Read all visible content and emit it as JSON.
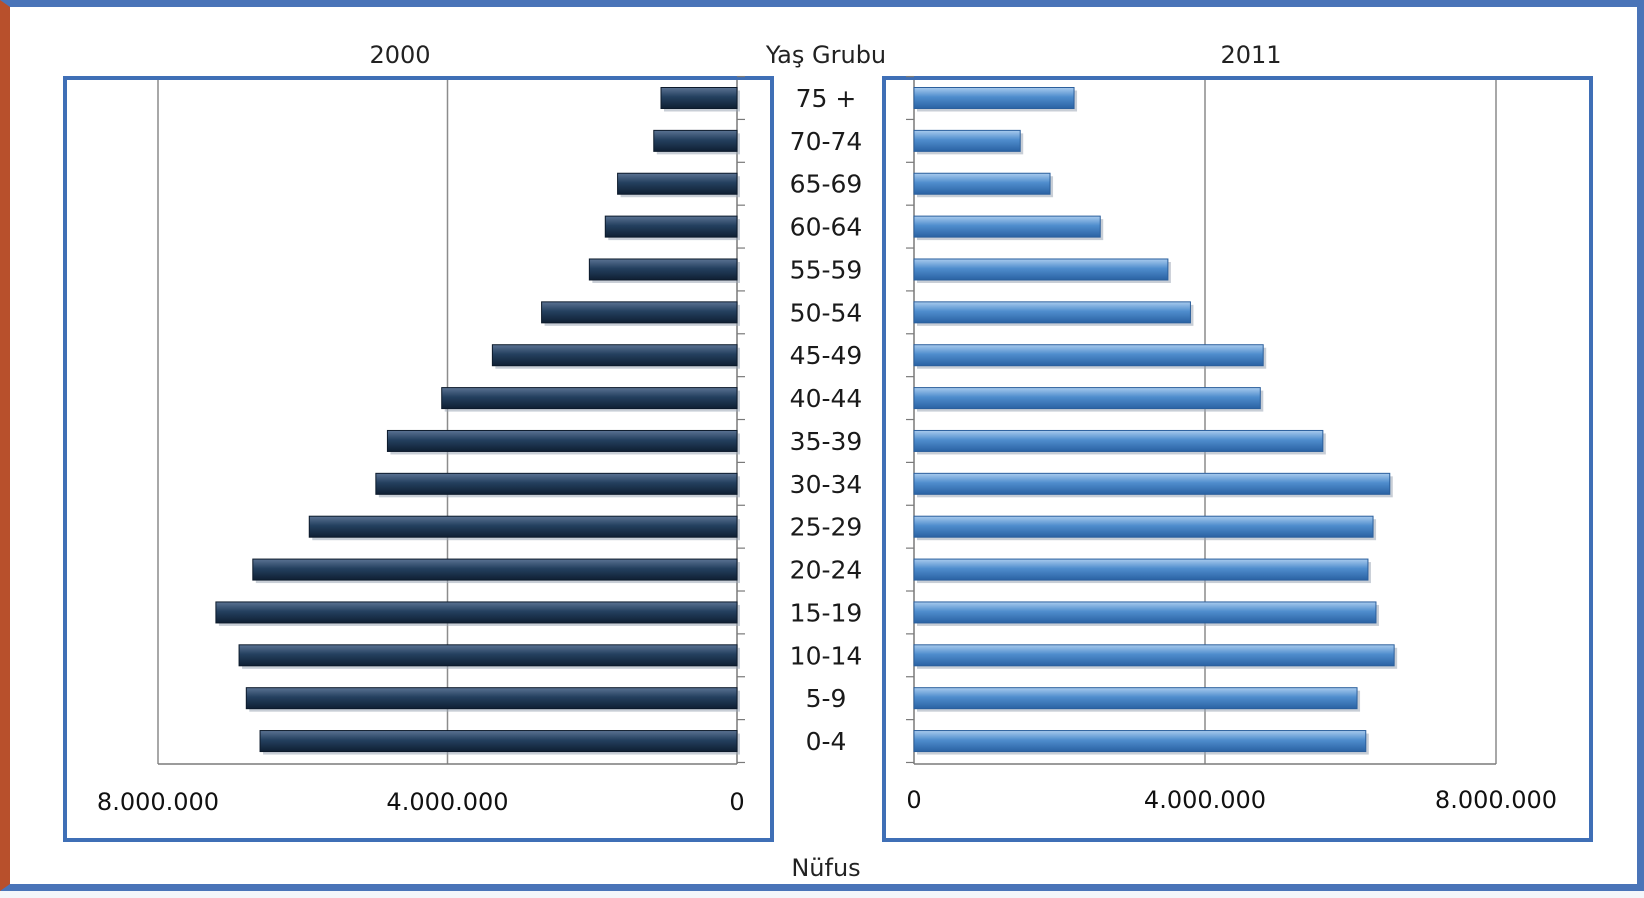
{
  "chart_data": {
    "type": "bar",
    "orientation": "horizontal",
    "layout": "population-pyramid",
    "category_axis_title": "Yaş Grubu",
    "value_axis_title": "Nüfus",
    "categories": [
      "75 +",
      "70-74",
      "65-69",
      "60-64",
      "55-59",
      "50-54",
      "45-49",
      "40-44",
      "35-39",
      "30-34",
      "25-29",
      "20-24",
      "15-19",
      "10-14",
      "5-9",
      "0-4"
    ],
    "xlim": [
      0,
      8000000
    ],
    "x_ticks": [
      0,
      4000000,
      8000000
    ],
    "x_tick_labels": [
      "0",
      "4.000.000",
      "8.000.000"
    ],
    "grid": true,
    "series": [
      {
        "name": "2000",
        "side": "left",
        "color": "#1c3350",
        "values": [
          1050000,
          1150000,
          1650000,
          1820000,
          2040000,
          2700000,
          3380000,
          4080000,
          4830000,
          4990000,
          5910000,
          6690000,
          7200000,
          6880000,
          6780000,
          6590000
        ]
      },
      {
        "name": "2011",
        "side": "right",
        "color": "#4a86c6",
        "values": [
          2200000,
          1460000,
          1870000,
          2560000,
          3490000,
          3800000,
          4800000,
          4760000,
          5620000,
          6540000,
          6310000,
          6240000,
          6350000,
          6600000,
          6090000,
          6210000
        ]
      }
    ]
  }
}
